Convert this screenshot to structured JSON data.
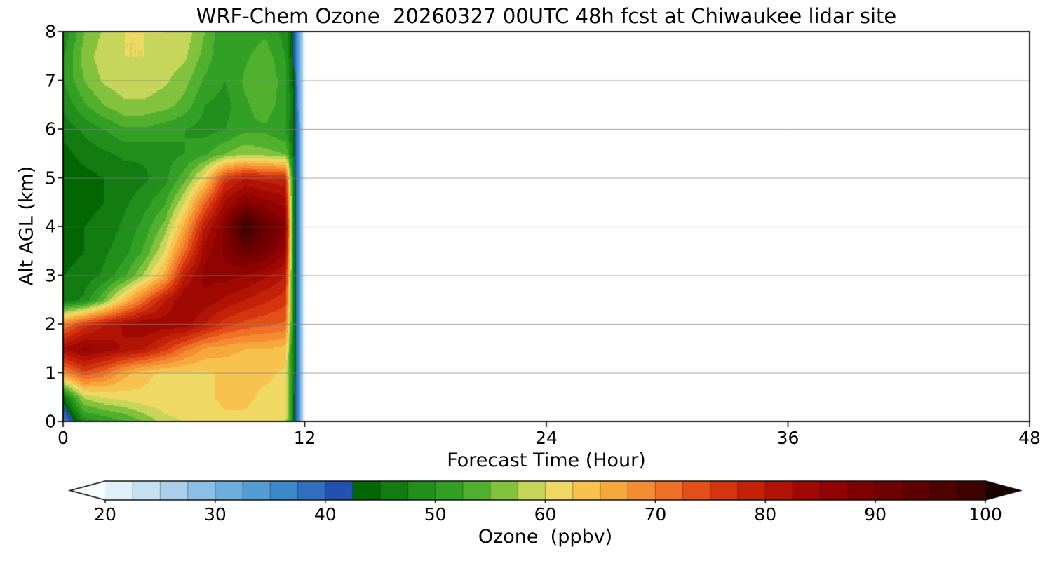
{
  "figure": {
    "title": "WRF-Chem Ozone  20260327 00UTC 48h fcst at Chiwaukee lidar site",
    "x_axis": {
      "label": "Forecast Time (Hour)",
      "ticks": [
        0,
        12,
        24,
        36,
        48
      ],
      "range": [
        0,
        48
      ]
    },
    "y_axis": {
      "label": "Alt AGL (km)",
      "ticks": [
        0,
        1,
        2,
        3,
        4,
        5,
        6,
        7,
        8
      ],
      "range": [
        0,
        8
      ]
    },
    "colorbar": {
      "label": "Ozone  (ppbv)",
      "ticks": [
        20,
        30,
        40,
        50,
        60,
        70,
        80,
        90,
        100
      ],
      "range": [
        20,
        100
      ],
      "extend": "both"
    }
  },
  "chart_data": {
    "type": "heatmap",
    "title": "WRF-Chem Ozone  20260327 00UTC 48h fcst at Chiwaukee lidar site",
    "xlabel": "Forecast Time (Hour)",
    "ylabel": "Alt AGL (km)",
    "value_label": "Ozone  (ppbv)",
    "xlim": [
      0,
      48
    ],
    "ylim": [
      0,
      8
    ],
    "data_end_hour": 12,
    "grid": "horizontal-only",
    "grid_color": "#828282",
    "x_hours": [
      0,
      1,
      2,
      3,
      4,
      5,
      6,
      7,
      8,
      9,
      10,
      11,
      11.4,
      11.7,
      12
    ],
    "y_alt_km": [
      0,
      0.5,
      1,
      1.5,
      2,
      2.5,
      3,
      3.5,
      4,
      4.5,
      5,
      5.5,
      6,
      6.5,
      7,
      7.5,
      8
    ],
    "values_ppbv": [
      [
        36,
        48,
        50,
        52,
        55,
        59,
        60,
        61,
        62,
        62,
        61,
        60,
        46,
        33,
        18
      ],
      [
        45,
        58,
        60,
        61,
        62,
        62,
        62,
        62,
        63,
        63,
        62,
        62,
        46,
        33,
        18
      ],
      [
        68,
        74,
        71,
        66,
        63,
        62,
        62,
        62,
        63,
        63,
        63,
        62,
        47,
        33,
        18
      ],
      [
        83,
        86,
        84,
        82,
        80,
        76,
        71,
        67,
        66,
        65,
        65,
        64,
        47,
        33,
        18
      ],
      [
        70,
        76,
        80,
        83,
        85,
        84,
        84,
        80,
        76,
        74,
        73,
        72,
        48,
        33,
        18
      ],
      [
        46,
        48,
        55,
        64,
        72,
        80,
        85,
        84,
        82,
        80,
        78,
        76,
        48,
        33,
        18
      ],
      [
        45,
        46,
        48,
        52,
        58,
        66,
        80,
        86,
        86,
        85,
        83,
        80,
        48,
        33,
        18
      ],
      [
        44,
        45,
        47,
        49,
        53,
        60,
        72,
        84,
        88,
        92,
        90,
        85,
        48,
        33,
        18
      ],
      [
        44,
        45,
        46,
        48,
        51,
        56,
        66,
        80,
        88,
        100,
        93,
        88,
        48,
        33,
        18
      ],
      [
        43,
        44,
        45,
        47,
        49,
        52,
        60,
        72,
        83,
        88,
        86,
        84,
        48,
        33,
        18
      ],
      [
        43,
        44,
        45,
        46,
        47,
        49,
        54,
        62,
        76,
        80,
        79,
        78,
        47,
        33,
        18
      ],
      [
        44,
        46,
        47,
        48,
        48,
        49,
        50,
        52,
        55,
        57,
        56,
        55,
        46,
        33,
        18
      ],
      [
        46,
        48,
        50,
        52,
        52,
        51,
        50,
        49,
        50,
        52,
        52,
        50,
        45,
        33,
        18
      ],
      [
        48,
        52,
        55,
        57,
        57,
        56,
        54,
        50,
        49,
        52,
        54,
        51,
        45,
        32,
        18
      ],
      [
        50,
        55,
        58,
        59,
        59,
        58,
        56,
        52,
        50,
        53,
        55,
        51,
        44,
        32,
        18
      ],
      [
        50,
        56,
        59,
        60,
        60,
        59,
        58,
        54,
        50,
        52,
        54,
        50,
        43,
        32,
        18
      ],
      [
        48,
        55,
        58,
        60,
        60,
        60,
        59,
        55,
        50,
        51,
        52,
        49,
        42,
        32,
        18
      ]
    ],
    "level_step_ppbv": 2.5,
    "value_domain": [
      15,
      105
    ],
    "colormap_stops": [
      [
        15,
        "#ffffff"
      ],
      [
        20,
        "#eef6fc"
      ],
      [
        24,
        "#c3def2"
      ],
      [
        28,
        "#94c4e7"
      ],
      [
        32,
        "#64a9da"
      ],
      [
        36,
        "#3c8ccc"
      ],
      [
        40,
        "#2a62bb"
      ],
      [
        42.5,
        "#1e3fa6"
      ],
      [
        43.5,
        "#006400"
      ],
      [
        47,
        "#178317"
      ],
      [
        51,
        "#2f9e23"
      ],
      [
        55,
        "#62b834"
      ],
      [
        57.5,
        "#a3cc44"
      ],
      [
        60,
        "#e8e070"
      ],
      [
        62.5,
        "#f7d058"
      ],
      [
        65,
        "#f7b644"
      ],
      [
        67.5,
        "#f59a36"
      ],
      [
        70,
        "#f3802c"
      ],
      [
        72.5,
        "#ea5f1f"
      ],
      [
        75,
        "#dc3e12"
      ],
      [
        78,
        "#c92609"
      ],
      [
        81,
        "#b31405"
      ],
      [
        85,
        "#980400"
      ],
      [
        89,
        "#7d0000"
      ],
      [
        93,
        "#620000"
      ],
      [
        97,
        "#4a0000"
      ],
      [
        101,
        "#300000"
      ],
      [
        105,
        "#120000"
      ]
    ]
  }
}
